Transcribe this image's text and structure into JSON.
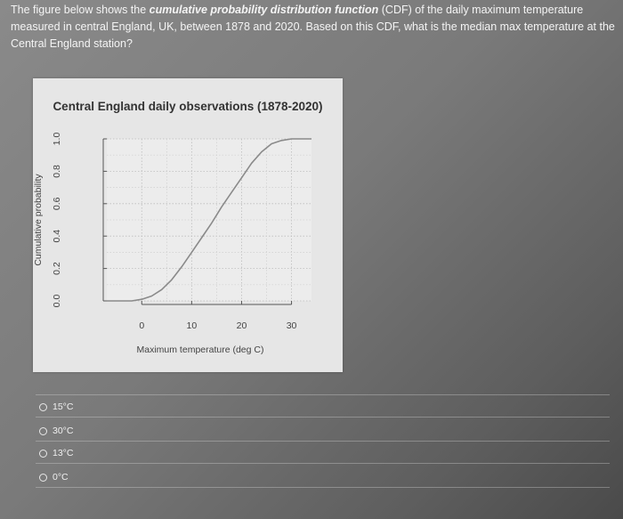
{
  "question": {
    "part1": "The figure below shows the ",
    "emphasis": "cumulative probability distribution function",
    "part2": " (CDF) of the daily maximum temperature measured in central England, UK, between 1878 and 2020. Based on this CDF, what is the median max temperature at the Central England station?"
  },
  "chart_data": {
    "type": "line",
    "title": "Central England daily observations (1878-2020)",
    "xlabel": "Maximum temperature (deg C)",
    "ylabel": "Cumulative probability",
    "x_ticks": [
      "0",
      "10",
      "20",
      "30"
    ],
    "y_ticks": [
      "0.0",
      "0.2",
      "0.4",
      "0.6",
      "0.8",
      "1.0"
    ],
    "xlim": [
      -7,
      34
    ],
    "ylim": [
      0,
      1
    ],
    "grid": true,
    "series": [
      {
        "x": [
          -7,
          -2,
          0,
          2,
          4,
          6,
          8,
          10,
          12,
          14,
          16,
          18,
          20,
          22,
          24,
          26,
          28,
          30,
          32,
          34
        ],
        "y": [
          0.0,
          0.0,
          0.01,
          0.03,
          0.07,
          0.13,
          0.21,
          0.3,
          0.39,
          0.48,
          0.58,
          0.67,
          0.76,
          0.85,
          0.92,
          0.97,
          0.99,
          1.0,
          1.0,
          1.0
        ]
      }
    ]
  },
  "options": [
    {
      "label": "15°C"
    },
    {
      "label": "30°C"
    },
    {
      "label": "13°C"
    },
    {
      "label": "0°C"
    }
  ]
}
